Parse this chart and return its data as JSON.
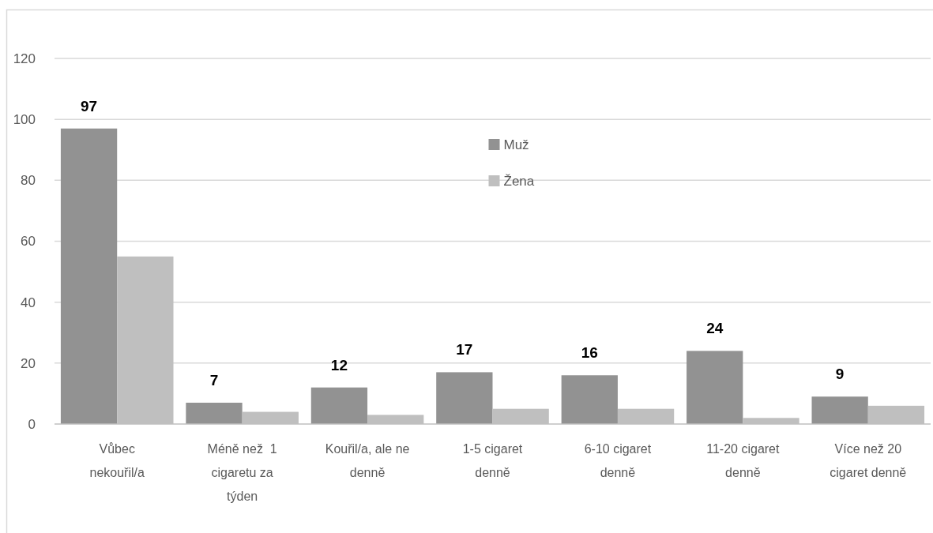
{
  "chart_data": {
    "type": "bar",
    "categories": [
      "Vůbec nekouřil/a",
      "Méně než  1 cigaretu za týden",
      "Kouřil/a, ale ne denně",
      "1-5 cigaret denně",
      "6-10 cigaret denně",
      "11-20 cigaret denně",
      "Více než 20 cigaret denně"
    ],
    "series": [
      {
        "name": "Muž",
        "color": "#929292",
        "values": [
          97,
          7,
          12,
          17,
          16,
          24,
          9
        ],
        "value_labels": [
          "97",
          "7",
          "12",
          "17",
          "16",
          "24",
          "9"
        ]
      },
      {
        "name": "Žena",
        "color": "#bfbfbf",
        "values": [
          55,
          4,
          3,
          5,
          5,
          2,
          6
        ]
      }
    ],
    "ylim": [
      0,
      120
    ],
    "yticks": [
      0,
      20,
      40,
      60,
      80,
      100,
      120
    ],
    "grid": "y",
    "legend": "top"
  }
}
